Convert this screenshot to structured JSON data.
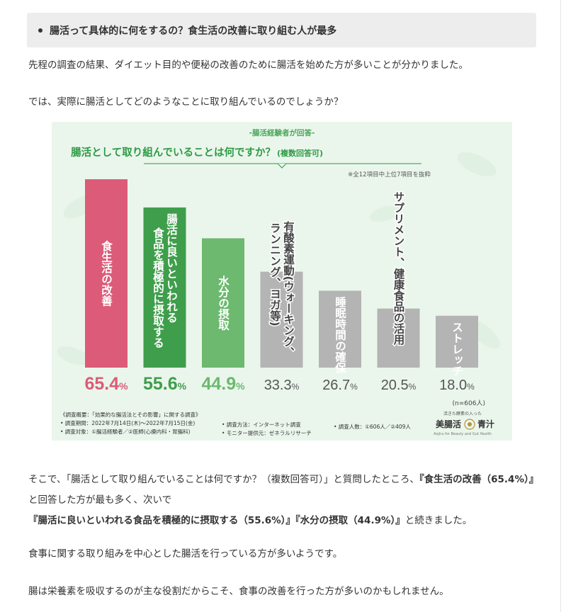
{
  "section_heading": "腸活って具体的に何をするの？食生活の改善に取り組む人が最多",
  "intro_paragraph_1": "先程の調査の結果、ダイエット目的や便秘の改善のために腸活を始めた方が多いことが分かりました。",
  "intro_paragraph_2": "では、実際に腸活としてどのようなことに取り組んでいるのでしょうか？",
  "chart_data": {
    "type": "bar",
    "supertitle": "-腸活経験者が回答-",
    "title": "腸活として取り組んでいることは何ですか？",
    "title_note": "(複数回答可)",
    "subnote": "※全12項目中上位7項目を抜粋",
    "unit": "%",
    "ylim": [
      0,
      75
    ],
    "categories": [
      "食生活の改善",
      "腸活に良いといわれる食品を積極的に摂取する",
      "水分の摂取",
      "有酸素運動(ウォーキング、ランニング、ヨガ等)",
      "睡眠時間の確保",
      "サプリメント、健康食品の活用",
      "ストレッチ"
    ],
    "label_columns": [
      [
        "食生活の改善"
      ],
      [
        "腸活に良いといわれる",
        "食品を積極的に摂取する"
      ],
      [
        "水分の摂取"
      ],
      [
        "有酸素運動(ウォーキング、",
        "ランニング、ヨガ等)"
      ],
      [
        "睡眠時間の確保"
      ],
      [
        "サプリメント、健康食品の活用"
      ],
      [
        "ストレッチ"
      ]
    ],
    "values": [
      65.4,
      55.6,
      44.9,
      33.3,
      26.7,
      20.5,
      18.0
    ],
    "value_labels": [
      "65.4",
      "55.6",
      "44.9",
      "33.3",
      "26.7",
      "20.5",
      "18.0"
    ],
    "bar_colors": [
      "#dc5b79",
      "#3f9e4b",
      "#6cb96f",
      "#b4b4b4",
      "#b4b4b4",
      "#b4b4b4",
      "#b4b4b4"
    ],
    "value_colors": [
      "#dc5b79",
      "#3f9e4b",
      "#6cb96f",
      "#555555",
      "#555555",
      "#555555",
      "#555555"
    ],
    "label_colors": [
      "#ffffff",
      "#ffffff",
      "#ffffff",
      "#444444",
      "#ffffff",
      "#444444",
      "#ffffff"
    ],
    "sample": "(n=606人)",
    "footer": {
      "survey_title": "《調査概要：「効果的な腸活法とその影響」に関する調査》",
      "survey_period": "• 調査期間：2022年7月14日(木)～2022年7月15日(金)",
      "survey_target": "• 調査対象：①腸活経験者／②医師(心療内科・胃腸科)",
      "survey_method": "• 調査方法：インターネット調査",
      "monitor_source": "• モニター提供元：ゼネラルリサーチ",
      "survey_count": "• 調査人数：①606人／②409人"
    },
    "logo": {
      "tagline": "活きた酵素の入った",
      "name_left": "美腸活",
      "name_right": "青汁",
      "sub": "Aojiru for Beauty and Gut Health"
    },
    "colors": {
      "background": "#eaf6ec",
      "title_green": "#2e9a45",
      "supertitle_green": "#4aa85a"
    }
  },
  "body_paragraph_1_parts": [
    "そこで、「腸活として取り組んでいることは何ですか？（複数回答可）」と質問したところ、",
    "『食生活の改善（65.4%）』",
    "と回答した方が最も多く、次いで",
    "『腸活に良いといわれる食品を積極的に摂取する（55.6%）』『水分の摂取（44.9%）』",
    "と続きました。"
  ],
  "body_paragraph_2": "食事に関する取り組みを中心とした腸活を行っている方が多いようです。",
  "body_paragraph_3": "腸は栄養素を吸収するのが主な役割だからこそ、食事の改善を行った方が多いのかもしれません。"
}
